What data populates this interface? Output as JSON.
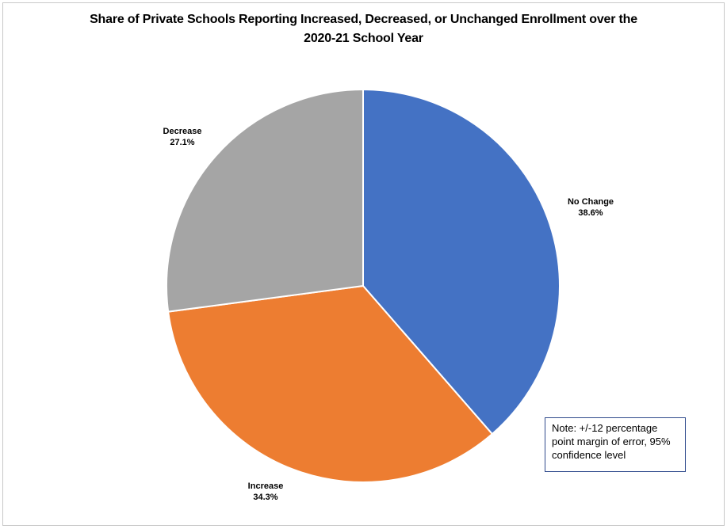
{
  "chart_data": {
    "type": "pie",
    "title_line1": "Share of Private Schools Reporting Increased, Decreased, or Unchanged Enrollment over the",
    "title_line2": "2020-21 School Year",
    "slices": [
      {
        "name": "No Change",
        "value": 38.6,
        "label": "38.6%",
        "color": "#4472c4"
      },
      {
        "name": "Increase",
        "value": 34.3,
        "label": "34.3%",
        "color": "#ed7d31"
      },
      {
        "name": "Decrease",
        "value": 27.1,
        "label": "27.1%",
        "color": "#a5a5a5"
      }
    ],
    "start_angle": "12 o'clock, clockwise",
    "legend": "none",
    "note": "Note: +/-12 percentage point margin of error, 95% confidence level"
  }
}
